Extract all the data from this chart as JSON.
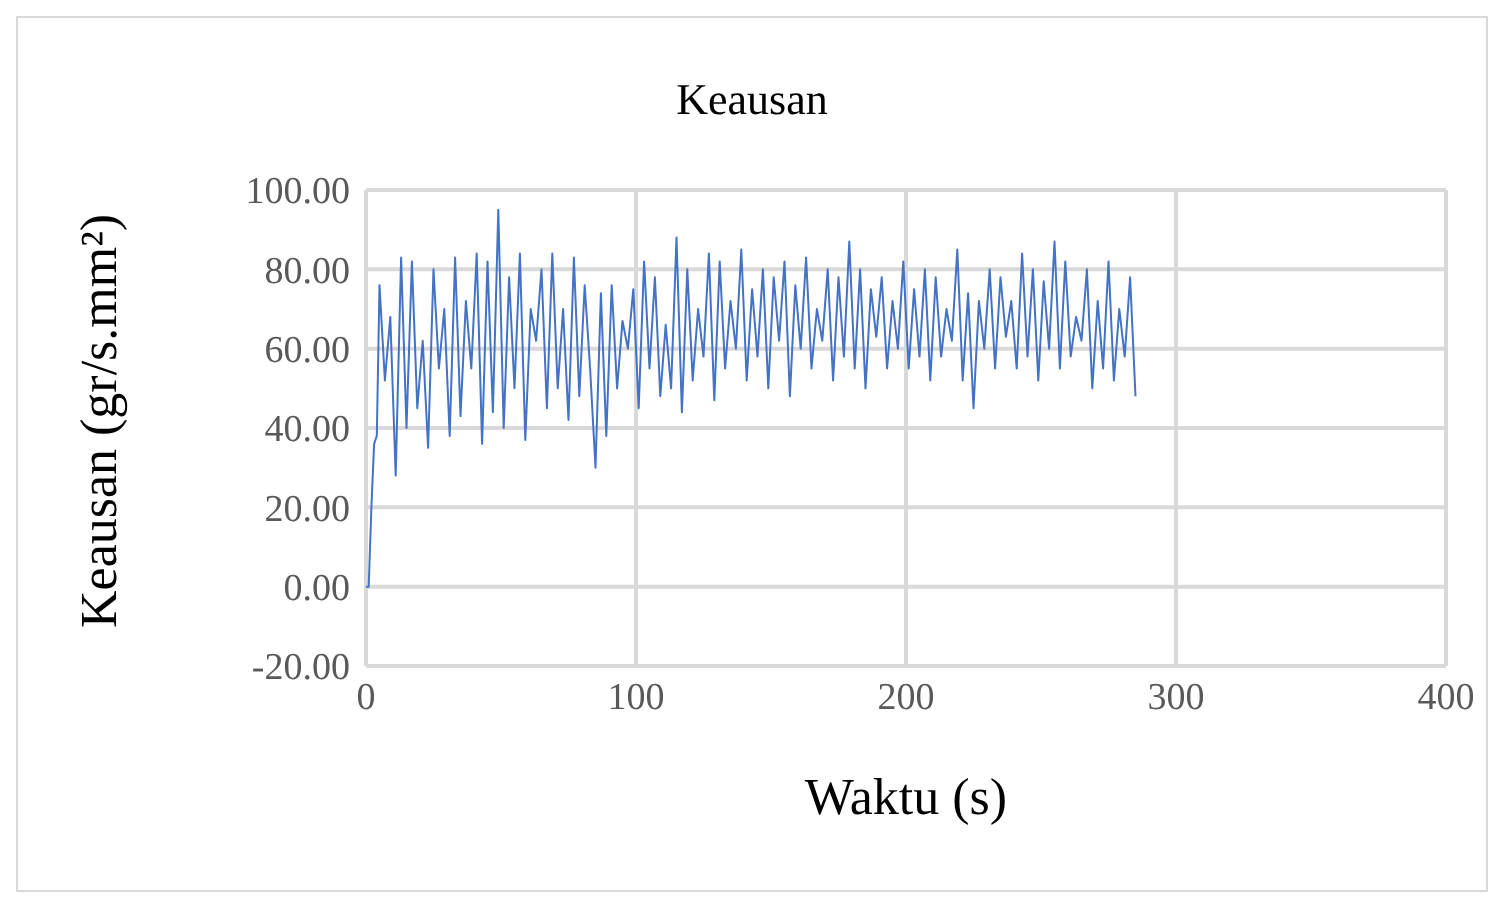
{
  "chart_data": {
    "type": "line",
    "title": "Keausan",
    "xlabel": "Waktu (s)",
    "ylabel": "Keausan (gr/s.mm²)",
    "x": [
      0,
      1,
      2,
      3,
      4,
      5,
      7,
      9,
      11,
      13,
      15,
      17,
      19,
      21,
      23,
      25,
      27,
      29,
      31,
      33,
      35,
      37,
      39,
      41,
      43,
      45,
      47,
      49,
      51,
      53,
      55,
      57,
      59,
      61,
      63,
      65,
      67,
      69,
      71,
      73,
      75,
      77,
      79,
      81,
      83,
      85,
      87,
      89,
      91,
      93,
      95,
      97,
      99,
      101,
      103,
      105,
      107,
      109,
      111,
      113,
      115,
      117,
      119,
      121,
      123,
      125,
      127,
      129,
      131,
      133,
      135,
      137,
      139,
      141,
      143,
      145,
      147,
      149,
      151,
      153,
      155,
      157,
      159,
      161,
      163,
      165,
      167,
      169,
      171,
      173,
      175,
      177,
      179,
      181,
      183,
      185,
      187,
      189,
      191,
      193,
      195,
      197,
      199,
      201,
      203,
      205,
      207,
      209,
      211,
      213,
      215,
      217,
      219,
      221,
      223,
      225,
      227,
      229,
      231,
      233,
      235,
      237,
      239,
      241,
      243,
      245,
      247,
      249,
      251,
      253,
      255,
      257,
      259,
      261,
      263,
      265,
      267,
      269,
      271,
      273,
      275,
      277,
      279,
      281,
      283,
      285
    ],
    "series": [
      {
        "color": "#4472c4",
        "values": [
          0,
          0,
          20,
          36,
          38,
          76,
          52,
          68,
          28,
          83,
          40,
          82,
          45,
          62,
          35,
          80,
          55,
          70,
          38,
          83,
          43,
          72,
          55,
          84,
          36,
          82,
          44,
          95,
          40,
          78,
          50,
          84,
          37,
          70,
          62,
          80,
          45,
          84,
          50,
          70,
          42,
          83,
          48,
          76,
          55,
          30,
          74,
          38,
          76,
          50,
          67,
          60,
          75,
          45,
          82,
          55,
          78,
          48,
          66,
          50,
          88,
          44,
          80,
          52,
          70,
          58,
          84,
          47,
          82,
          55,
          72,
          60,
          85,
          52,
          75,
          58,
          80,
          50,
          78,
          62,
          82,
          48,
          76,
          60,
          83,
          55,
          70,
          62,
          80,
          52,
          78,
          58,
          87,
          55,
          80,
          50,
          75,
          63,
          78,
          55,
          72,
          60,
          82,
          55,
          75,
          58,
          80,
          52,
          78,
          58,
          70,
          62,
          85,
          52,
          74,
          45,
          72,
          60,
          80,
          55,
          78,
          63,
          72,
          55,
          84,
          58,
          80,
          52,
          77,
          60,
          87,
          55,
          82,
          58,
          68,
          62,
          80,
          50,
          72,
          55,
          82,
          52,
          70,
          58,
          78,
          48
        ]
      }
    ],
    "xlim": [
      0,
      400
    ],
    "xticks": [
      0,
      100,
      200,
      300,
      400
    ],
    "ylim": [
      -20,
      100
    ],
    "yticks": [
      {
        "value": -20,
        "label": "-20.00"
      },
      {
        "value": 0,
        "label": "0.00"
      },
      {
        "value": 20,
        "label": "20.00"
      },
      {
        "value": 40,
        "label": "40.00"
      },
      {
        "value": 60,
        "label": "60.00"
      },
      {
        "value": 80,
        "label": "80.00"
      },
      {
        "value": 100,
        "label": "100.00"
      }
    ],
    "grid": true,
    "legend": false,
    "marker": "none",
    "line_style": "solid"
  }
}
